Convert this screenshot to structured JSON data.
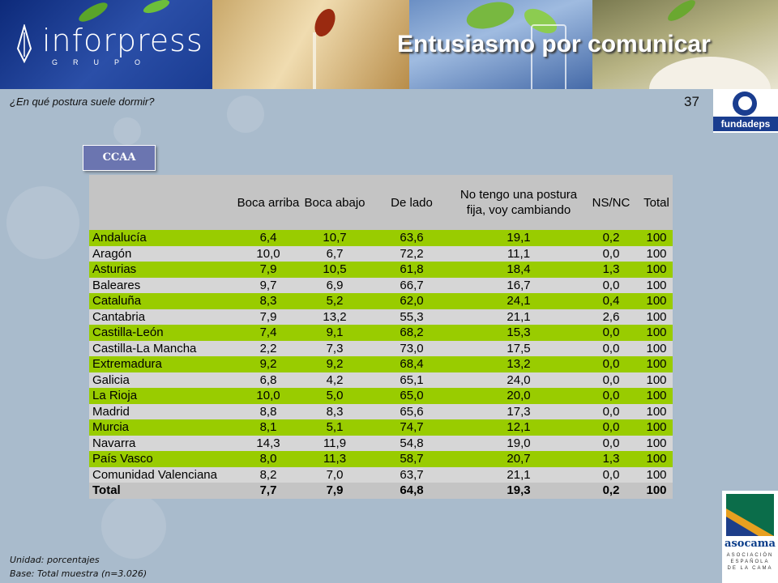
{
  "header": {
    "logo_text": "inforpress",
    "logo_subtext": "GRUPO",
    "title": "Entusiasmo por comunicar"
  },
  "question": "¿En qué postura suele dormir?",
  "page_number": "37",
  "fundadeps_label": "fundadeps",
  "section_button": "CCAA",
  "table": {
    "headers": [
      "",
      "Boca arriba",
      "Boca abajo",
      "De lado",
      "No tengo una postura fija, voy cambiando",
      "NS/NC",
      "Total"
    ],
    "rows": [
      {
        "region": "Andalucía",
        "values": [
          "6,4",
          "10,7",
          "63,6",
          "19,1",
          "0,2",
          "100"
        ]
      },
      {
        "region": "Aragón",
        "values": [
          "10,0",
          "6,7",
          "72,2",
          "11,1",
          "0,0",
          "100"
        ]
      },
      {
        "region": "Asturias",
        "values": [
          "7,9",
          "10,5",
          "61,8",
          "18,4",
          "1,3",
          "100"
        ]
      },
      {
        "region": "Baleares",
        "values": [
          "9,7",
          "6,9",
          "66,7",
          "16,7",
          "0,0",
          "100"
        ]
      },
      {
        "region": "Cataluña",
        "values": [
          "8,3",
          "5,2",
          "62,0",
          "24,1",
          "0,4",
          "100"
        ]
      },
      {
        "region": "Cantabria",
        "values": [
          "7,9",
          "13,2",
          "55,3",
          "21,1",
          "2,6",
          "100"
        ]
      },
      {
        "region": "Castilla-León",
        "values": [
          "7,4",
          "9,1",
          "68,2",
          "15,3",
          "0,0",
          "100"
        ]
      },
      {
        "region": "Castilla-La Mancha",
        "values": [
          "2,2",
          "7,3",
          "73,0",
          "17,5",
          "0,0",
          "100"
        ]
      },
      {
        "region": "Extremadura",
        "values": [
          "9,2",
          "9,2",
          "68,4",
          "13,2",
          "0,0",
          "100"
        ]
      },
      {
        "region": "Galicia",
        "values": [
          "6,8",
          "4,2",
          "65,1",
          "24,0",
          "0,0",
          "100"
        ]
      },
      {
        "region": "La Rioja",
        "values": [
          "10,0",
          "5,0",
          "65,0",
          "20,0",
          "0,0",
          "100"
        ]
      },
      {
        "region": "Madrid",
        "values": [
          "8,8",
          "8,3",
          "65,6",
          "17,3",
          "0,0",
          "100"
        ]
      },
      {
        "region": "Murcia",
        "values": [
          "8,1",
          "5,1",
          "74,7",
          "12,1",
          "0,0",
          "100"
        ]
      },
      {
        "region": "Navarra",
        "values": [
          "14,3",
          "11,9",
          "54,8",
          "19,0",
          "0,0",
          "100"
        ]
      },
      {
        "region": "País Vasco",
        "values": [
          "8,0",
          "11,3",
          "58,7",
          "20,7",
          "1,3",
          "100"
        ]
      },
      {
        "region": "Comunidad Valenciana",
        "values": [
          "8,2",
          "7,0",
          "63,7",
          "21,1",
          "0,0",
          "100"
        ]
      }
    ],
    "total": {
      "region": "Total",
      "values": [
        "7,7",
        "7,9",
        "64,8",
        "19,3",
        "0,2",
        "100"
      ]
    }
  },
  "footer": {
    "unit": "Unidad: porcentajes",
    "base": "Base: Total muestra (n=3.026)"
  },
  "asocama": {
    "name": "asocama",
    "subtitle": "ASOCIACIÓN ESPAÑOLA DE LA CAMA"
  },
  "colors": {
    "row_highlight": "#99cc00",
    "row_plain": "#d6d6d6",
    "header_bg": "#c4c4c4",
    "button_bg": "#6b75b0"
  }
}
